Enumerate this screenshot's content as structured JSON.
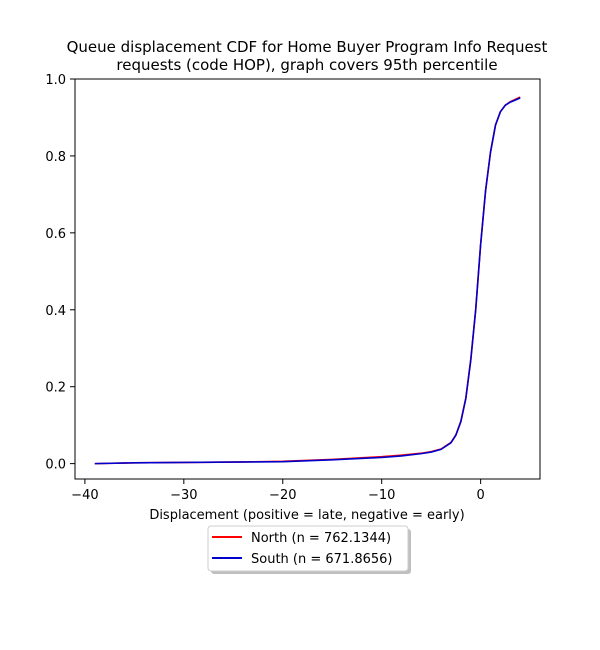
{
  "chart_data": {
    "type": "line",
    "title": [
      "Queue displacement CDF for Home Buyer Program Info Request",
      "requests (code HOP), graph covers 95th percentile"
    ],
    "xlabel": "Displacement (positive = late, negative = early)",
    "ylabel": "",
    "xlim": [
      -41,
      6
    ],
    "ylim": [
      -0.04,
      1.0
    ],
    "xticks": [
      -40,
      -30,
      -20,
      -10,
      0
    ],
    "yticks": [
      0.0,
      0.2,
      0.4,
      0.6,
      0.8,
      1.0
    ],
    "xtick_labels": [
      "−40",
      "−30",
      "−20",
      "−10",
      "0"
    ],
    "ytick_labels": [
      "0.0",
      "0.2",
      "0.4",
      "0.6",
      "0.8",
      "1.0"
    ],
    "grid": false,
    "legend_position": "below",
    "series": [
      {
        "name": "North (n = 762.1344)",
        "color": "#ff0000",
        "x": [
          -39,
          -35,
          -30,
          -25,
          -20,
          -15,
          -10,
          -8,
          -6,
          -5,
          -4,
          -3,
          -2.5,
          -2,
          -1.5,
          -1,
          -0.5,
          0,
          0.5,
          1,
          1.5,
          2,
          2.5,
          3,
          3.5,
          4
        ],
        "y": [
          0.0,
          0.002,
          0.003,
          0.004,
          0.006,
          0.011,
          0.018,
          0.022,
          0.027,
          0.031,
          0.038,
          0.055,
          0.075,
          0.11,
          0.17,
          0.27,
          0.4,
          0.57,
          0.71,
          0.81,
          0.88,
          0.915,
          0.932,
          0.941,
          0.947,
          0.953
        ]
      },
      {
        "name": "South (n = 671.8656)",
        "color": "#0000cc",
        "x": [
          -39,
          -35,
          -30,
          -25,
          -20,
          -15,
          -10,
          -8,
          -6,
          -5,
          -4,
          -3,
          -2.5,
          -2,
          -1.5,
          -1,
          -0.5,
          0,
          0.5,
          1,
          1.5,
          2,
          2.5,
          3,
          3.5,
          4
        ],
        "y": [
          0.0,
          0.002,
          0.003,
          0.004,
          0.005,
          0.01,
          0.016,
          0.02,
          0.026,
          0.03,
          0.037,
          0.054,
          0.074,
          0.109,
          0.169,
          0.268,
          0.4,
          0.57,
          0.71,
          0.81,
          0.88,
          0.915,
          0.932,
          0.94,
          0.945,
          0.951
        ]
      }
    ]
  }
}
